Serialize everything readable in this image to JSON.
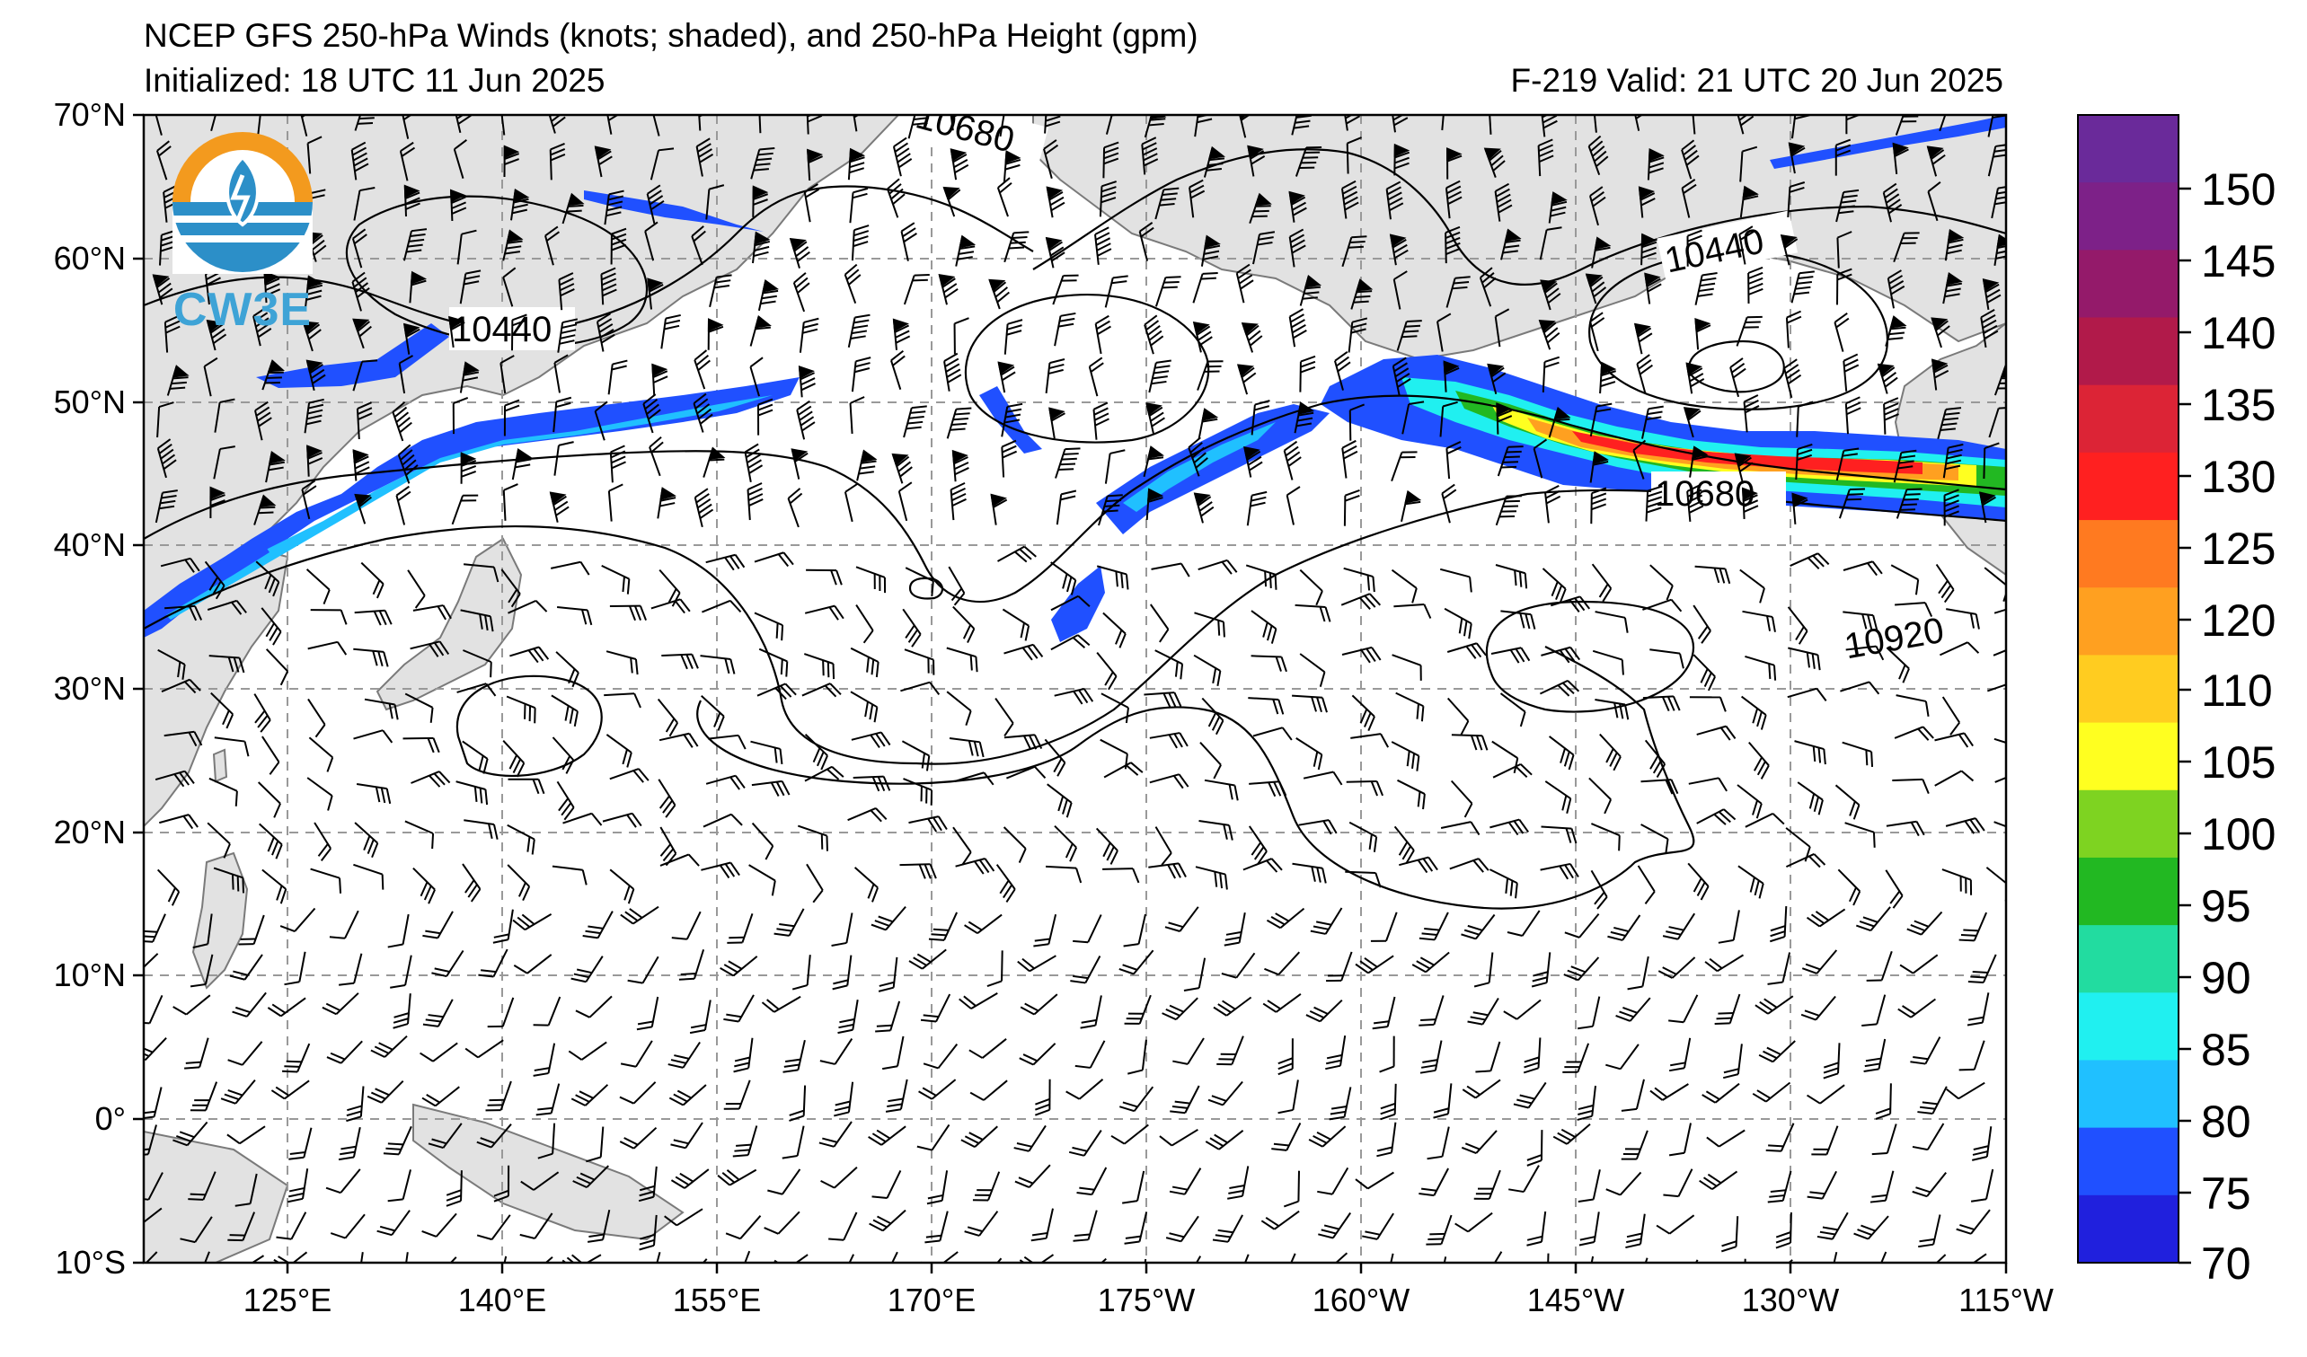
{
  "header": {
    "title": "NCEP GFS 250-hPa Winds (knots; shaded), and 250-hPa Height (gpm)",
    "initialized": "Initialized: 18 UTC 11 Jun 2025",
    "valid": "F-219  Valid: 21 UTC 20 Jun 2025"
  },
  "logo": {
    "text": "CW3E"
  },
  "map": {
    "lat_labels": [
      "70°N",
      "60°N",
      "50°N",
      "40°N",
      "30°N",
      "20°N",
      "10°N",
      "0°",
      "10°S"
    ],
    "lon_labels": [
      "125°E",
      "140°E",
      "155°E",
      "170°E",
      "175°W",
      "160°W",
      "145°W",
      "130°W",
      "115°W"
    ],
    "contour_labels": [
      "10440",
      "10440",
      "10680",
      "10920",
      "10680"
    ]
  },
  "colorbar": {
    "ticks": [
      "150",
      "145",
      "140",
      "135",
      "130",
      "125",
      "120",
      "110",
      "105",
      "100",
      "95",
      "90",
      "85",
      "80",
      "75",
      "70"
    ],
    "colors": [
      "#6a2a9a",
      "#7d2188",
      "#941a6a",
      "#b11a4a",
      "#dc2436",
      "#ff2020",
      "#ff7a20",
      "#ffa020",
      "#ffcc20",
      "#ffff20",
      "#7ed321",
      "#22b822",
      "#22dca0",
      "#20f0f0",
      "#20c0ff",
      "#2050ff",
      "#2020dd"
    ]
  },
  "colors": {
    "land": "#e2e2e2",
    "coast": "#7a7a7a",
    "grid": "#999999"
  }
}
